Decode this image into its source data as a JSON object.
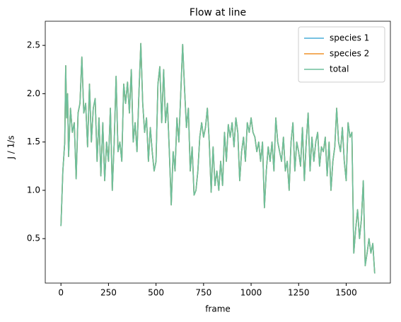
{
  "chart_data": {
    "type": "line",
    "title": "Flow at line",
    "xlabel": "frame",
    "ylabel": "J / 1/s",
    "x": [
      0,
      10,
      20,
      25,
      30,
      35,
      40,
      50,
      60,
      70,
      80,
      90,
      100,
      110,
      120,
      130,
      140,
      150,
      160,
      170,
      180,
      190,
      200,
      210,
      220,
      230,
      240,
      250,
      260,
      270,
      280,
      290,
      300,
      310,
      320,
      330,
      340,
      350,
      360,
      370,
      380,
      390,
      400,
      410,
      420,
      430,
      440,
      450,
      460,
      470,
      480,
      490,
      500,
      510,
      520,
      530,
      540,
      550,
      560,
      570,
      580,
      590,
      600,
      610,
      620,
      630,
      640,
      650,
      660,
      670,
      680,
      690,
      700,
      710,
      720,
      730,
      740,
      750,
      760,
      770,
      780,
      790,
      800,
      810,
      820,
      830,
      840,
      850,
      860,
      870,
      880,
      890,
      900,
      910,
      920,
      930,
      940,
      950,
      960,
      970,
      980,
      990,
      1000,
      1010,
      1020,
      1030,
      1040,
      1050,
      1060,
      1070,
      1080,
      1090,
      1100,
      1110,
      1120,
      1130,
      1140,
      1150,
      1160,
      1170,
      1180,
      1190,
      1200,
      1210,
      1220,
      1230,
      1240,
      1250,
      1260,
      1270,
      1280,
      1290,
      1300,
      1310,
      1320,
      1330,
      1340,
      1350,
      1360,
      1370,
      1380,
      1390,
      1400,
      1410,
      1420,
      1430,
      1440,
      1450,
      1460,
      1470,
      1480,
      1490,
      1500,
      1510,
      1520,
      1530,
      1540,
      1550,
      1560,
      1570,
      1580,
      1590,
      1600,
      1610,
      1620,
      1630,
      1640,
      1650
    ],
    "series": [
      {
        "name": "species 1",
        "color": "#4aaed8",
        "values": [
          0.63,
          1.2,
          1.5,
          2.29,
          1.75,
          2.0,
          1.35,
          1.85,
          1.6,
          1.7,
          1.12,
          1.8,
          1.9,
          2.38,
          1.8,
          1.9,
          1.45,
          2.1,
          1.5,
          1.85,
          1.95,
          1.3,
          1.75,
          1.15,
          1.7,
          1.1,
          1.5,
          1.3,
          1.85,
          1.0,
          1.5,
          2.18,
          1.4,
          1.5,
          1.3,
          2.1,
          1.9,
          2.12,
          1.8,
          2.25,
          1.5,
          1.7,
          1.4,
          2.0,
          2.52,
          1.9,
          1.6,
          1.75,
          1.3,
          1.65,
          1.4,
          1.2,
          1.3,
          2.1,
          2.28,
          1.7,
          2.25,
          1.7,
          1.9,
          1.4,
          0.85,
          1.4,
          1.2,
          1.75,
          1.5,
          2.0,
          2.51,
          2.05,
          1.65,
          1.85,
          1.2,
          1.45,
          0.95,
          1.0,
          1.2,
          1.55,
          1.7,
          1.55,
          1.65,
          1.85,
          1.5,
          0.98,
          1.45,
          1.05,
          1.2,
          1.0,
          1.3,
          1.05,
          1.6,
          1.3,
          1.68,
          1.55,
          1.7,
          1.45,
          1.75,
          1.6,
          1.1,
          1.4,
          1.55,
          1.3,
          1.7,
          1.6,
          1.75,
          1.6,
          1.55,
          1.4,
          1.5,
          1.3,
          1.5,
          0.82,
          1.2,
          1.45,
          1.3,
          1.5,
          1.2,
          1.75,
          1.5,
          1.4,
          1.3,
          1.55,
          1.2,
          1.3,
          1.0,
          1.5,
          1.7,
          1.2,
          1.5,
          1.4,
          1.25,
          1.65,
          1.1,
          1.5,
          1.8,
          1.2,
          1.55,
          1.3,
          1.5,
          1.6,
          1.25,
          1.45,
          1.4,
          1.55,
          1.15,
          1.5,
          1.0,
          1.3,
          1.45,
          1.85,
          1.5,
          1.4,
          1.65,
          1.3,
          1.1,
          1.7,
          1.55,
          1.6,
          0.35,
          0.6,
          0.8,
          0.5,
          0.7,
          1.1,
          0.22,
          0.35,
          0.5,
          0.35,
          0.45,
          0.14
        ]
      },
      {
        "name": "species 2",
        "color": "#f0922a",
        "values": [
          0.63,
          1.2,
          1.5,
          2.29,
          1.75,
          2.0,
          1.35,
          1.85,
          1.6,
          1.7,
          1.12,
          1.8,
          1.9,
          2.38,
          1.8,
          1.9,
          1.45,
          2.1,
          1.5,
          1.85,
          1.95,
          1.3,
          1.75,
          1.15,
          1.7,
          1.1,
          1.5,
          1.3,
          1.85,
          1.0,
          1.5,
          2.18,
          1.4,
          1.5,
          1.3,
          2.1,
          1.9,
          2.12,
          1.8,
          2.25,
          1.5,
          1.7,
          1.4,
          2.0,
          2.52,
          1.9,
          1.6,
          1.75,
          1.3,
          1.65,
          1.4,
          1.2,
          1.3,
          2.1,
          2.28,
          1.7,
          2.25,
          1.7,
          1.9,
          1.4,
          0.85,
          1.4,
          1.2,
          1.75,
          1.5,
          2.0,
          2.51,
          2.05,
          1.65,
          1.85,
          1.2,
          1.45,
          0.95,
          1.0,
          1.2,
          1.55,
          1.7,
          1.55,
          1.65,
          1.85,
          1.5,
          0.98,
          1.45,
          1.05,
          1.2,
          1.0,
          1.3,
          1.05,
          1.6,
          1.3,
          1.68,
          1.55,
          1.7,
          1.45,
          1.75,
          1.6,
          1.1,
          1.4,
          1.55,
          1.3,
          1.7,
          1.6,
          1.75,
          1.6,
          1.55,
          1.4,
          1.5,
          1.3,
          1.5,
          0.82,
          1.2,
          1.45,
          1.3,
          1.5,
          1.2,
          1.75,
          1.5,
          1.4,
          1.3,
          1.55,
          1.2,
          1.3,
          1.0,
          1.5,
          1.7,
          1.2,
          1.5,
          1.4,
          1.25,
          1.65,
          1.1,
          1.5,
          1.8,
          1.2,
          1.55,
          1.3,
          1.5,
          1.6,
          1.25,
          1.45,
          1.4,
          1.55,
          1.15,
          1.5,
          1.0,
          1.3,
          1.45,
          1.85,
          1.5,
          1.4,
          1.65,
          1.3,
          1.1,
          1.7,
          1.55,
          1.6,
          0.35,
          0.6,
          0.8,
          0.5,
          0.7,
          1.1,
          0.22,
          0.35,
          0.5,
          0.35,
          0.45,
          0.14
        ]
      },
      {
        "name": "total",
        "color": "#6dbf9b",
        "values": [
          0.63,
          1.2,
          1.5,
          2.29,
          1.75,
          2.0,
          1.35,
          1.85,
          1.6,
          1.7,
          1.12,
          1.8,
          1.9,
          2.38,
          1.8,
          1.9,
          1.45,
          2.1,
          1.5,
          1.85,
          1.95,
          1.3,
          1.75,
          1.15,
          1.7,
          1.1,
          1.5,
          1.3,
          1.85,
          1.0,
          1.5,
          2.18,
          1.4,
          1.5,
          1.3,
          2.1,
          1.9,
          2.12,
          1.8,
          2.25,
          1.5,
          1.7,
          1.4,
          2.0,
          2.52,
          1.9,
          1.6,
          1.75,
          1.3,
          1.65,
          1.4,
          1.2,
          1.3,
          2.1,
          2.28,
          1.7,
          2.25,
          1.7,
          1.9,
          1.4,
          0.85,
          1.4,
          1.2,
          1.75,
          1.5,
          2.0,
          2.51,
          2.05,
          1.65,
          1.85,
          1.2,
          1.45,
          0.95,
          1.0,
          1.2,
          1.55,
          1.7,
          1.55,
          1.65,
          1.85,
          1.5,
          0.98,
          1.45,
          1.05,
          1.2,
          1.0,
          1.3,
          1.05,
          1.6,
          1.3,
          1.68,
          1.55,
          1.7,
          1.45,
          1.75,
          1.6,
          1.1,
          1.4,
          1.55,
          1.3,
          1.7,
          1.6,
          1.75,
          1.6,
          1.55,
          1.4,
          1.5,
          1.3,
          1.5,
          0.82,
          1.2,
          1.45,
          1.3,
          1.5,
          1.2,
          1.75,
          1.5,
          1.4,
          1.3,
          1.55,
          1.2,
          1.3,
          1.0,
          1.5,
          1.7,
          1.2,
          1.5,
          1.4,
          1.25,
          1.65,
          1.1,
          1.5,
          1.8,
          1.2,
          1.55,
          1.3,
          1.5,
          1.6,
          1.25,
          1.45,
          1.4,
          1.55,
          1.15,
          1.5,
          1.0,
          1.3,
          1.45,
          1.85,
          1.5,
          1.4,
          1.65,
          1.3,
          1.1,
          1.7,
          1.55,
          1.6,
          0.35,
          0.6,
          0.8,
          0.5,
          0.7,
          1.1,
          0.22,
          0.35,
          0.5,
          0.35,
          0.45,
          0.14
        ]
      }
    ],
    "xlim": [
      -82.5,
      1732.5
    ],
    "xticks": [
      0,
      250,
      500,
      750,
      1000,
      1250,
      1500
    ],
    "ylim": [
      0.04,
      2.75
    ],
    "yticks": [
      0.5,
      {
        "value": 1.0,
        "label": "1.0"
      },
      1.5,
      {
        "value": 2.0,
        "label": "2.0"
      },
      2.5
    ],
    "legend": "upper right"
  }
}
